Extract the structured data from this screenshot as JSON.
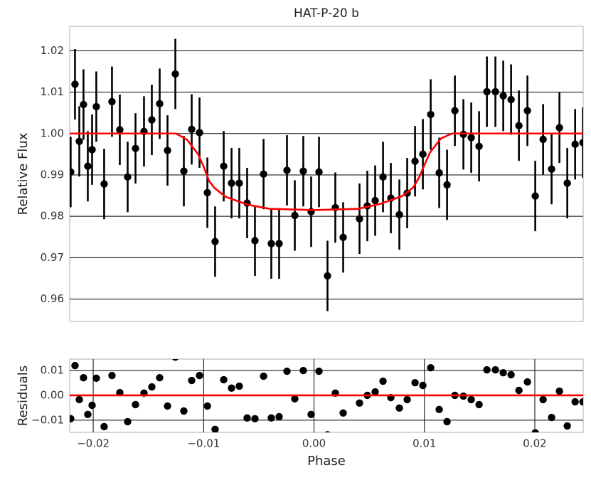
{
  "chart_data": [
    {
      "type": "errorbar",
      "title": "HAT-P-20 b",
      "ylabel": "Relative Flux",
      "x": [
        -0.02204,
        -0.02165,
        -0.02126,
        -0.02088,
        -0.02049,
        -0.0201,
        -0.01972,
        -0.01901,
        -0.0183,
        -0.01759,
        -0.01688,
        -0.01617,
        -0.0154,
        -0.01469,
        -0.01398,
        -0.01327,
        -0.01256,
        -0.01179,
        -0.01108,
        -0.01037,
        -0.00966,
        -0.00896,
        -0.00818,
        -0.00747,
        -0.00677,
        -0.00606,
        -0.00535,
        -0.00457,
        -0.00387,
        -0.00316,
        -0.00245,
        -0.00174,
        -0.00097,
        -0.00026,
        0.00045,
        0.00122,
        0.00193,
        0.00264,
        0.00412,
        0.00483,
        0.00554,
        0.00625,
        0.00696,
        0.00773,
        0.00844,
        0.00915,
        0.00986,
        0.01057,
        0.01134,
        0.01205,
        0.01276,
        0.01353,
        0.01424,
        0.01495,
        0.01566,
        0.01643,
        0.01714,
        0.01785,
        0.01856,
        0.01933,
        0.02004,
        0.02075,
        0.02152,
        0.02223,
        0.02294,
        0.02365,
        0.02436
      ],
      "values": [
        0.9907,
        1.0119,
        0.9981,
        1.007,
        0.9921,
        0.9961,
        1.0065,
        0.9878,
        1.0077,
        1.0009,
        0.9895,
        0.9964,
        1.0005,
        1.0033,
        1.0072,
        0.9959,
        1.0144,
        0.9909,
        1.001,
        1.0002,
        0.9857,
        0.9739,
        0.9921,
        0.988,
        0.988,
        0.9832,
        0.9741,
        0.9902,
        0.9734,
        0.9734,
        0.9911,
        0.9802,
        0.9909,
        0.9811,
        0.9907,
        0.9656,
        0.9821,
        0.9749,
        0.9794,
        0.9825,
        0.9838,
        0.9895,
        0.9844,
        0.9804,
        0.9856,
        0.9933,
        0.995,
        1.0046,
        0.9905,
        0.9876,
        1.0055,
        0.9998,
        0.999,
        0.9969,
        1.0101,
        1.0101,
        1.0091,
        1.0082,
        1.0019,
        1.0055,
        0.9849,
        0.9986,
        0.9914,
        1.0014,
        0.988,
        0.9974,
        0.9978
      ],
      "errors": [
        0.0085,
        0.0085,
        0.0085,
        0.0085,
        0.0085,
        0.0085,
        0.0085,
        0.0085,
        0.0085,
        0.0085,
        0.0085,
        0.0085,
        0.0085,
        0.0085,
        0.0085,
        0.0085,
        0.0085,
        0.0085,
        0.0085,
        0.0085,
        0.0085,
        0.0085,
        0.0085,
        0.0085,
        0.0085,
        0.0085,
        0.0085,
        0.0085,
        0.0085,
        0.0085,
        0.0085,
        0.0085,
        0.0085,
        0.0085,
        0.0085,
        0.0085,
        0.0085,
        0.0085,
        0.0085,
        0.0085,
        0.0085,
        0.0085,
        0.0085,
        0.0085,
        0.0085,
        0.0085,
        0.0085,
        0.0085,
        0.0085,
        0.0085,
        0.0085,
        0.0085,
        0.0085,
        0.0085,
        0.0085,
        0.0085,
        0.0085,
        0.0085,
        0.0085,
        0.0085,
        0.0085,
        0.0085,
        0.0085,
        0.0085,
        0.0085,
        0.0085,
        0.0085
      ],
      "color": "#000000",
      "model": {
        "x": [
          -0.0222,
          -0.0125,
          -0.0115,
          -0.0105,
          -0.01,
          -0.0095,
          -0.009,
          -0.008,
          -0.006,
          -0.004,
          0,
          0.004,
          0.006,
          0.008,
          0.009,
          0.0095,
          0.01,
          0.0105,
          0.0115,
          0.0125,
          0.0244
        ],
        "values": [
          1,
          1,
          0.9985,
          0.995,
          0.992,
          0.9885,
          0.9868,
          0.9847,
          0.9828,
          0.9818,
          0.9815,
          0.9818,
          0.983,
          0.9849,
          0.987,
          0.9893,
          0.9924,
          0.9954,
          0.9988,
          1,
          1
        ],
        "color": "#ff0000"
      },
      "xlim": [
        -0.02213,
        0.02438
      ],
      "ylim": [
        0.9546,
        1.0259
      ],
      "yticks": [
        0.96,
        0.97,
        0.98,
        0.99,
        {
          "value": 1,
          "label": "1.00"
        },
        1.01,
        1.02
      ],
      "grid": "y"
    },
    {
      "type": "scatter",
      "xlabel": "Phase",
      "ylabel": "Residuals",
      "x": [
        -0.02204,
        -0.02165,
        -0.02126,
        -0.02088,
        -0.02049,
        -0.0201,
        -0.01972,
        -0.01901,
        -0.0183,
        -0.01759,
        -0.01688,
        -0.01617,
        -0.0154,
        -0.01469,
        -0.01398,
        -0.01327,
        -0.01256,
        -0.01179,
        -0.01108,
        -0.01037,
        -0.00966,
        -0.00896,
        -0.00818,
        -0.00747,
        -0.00677,
        -0.00606,
        -0.00535,
        -0.00457,
        -0.00387,
        -0.00316,
        -0.00245,
        -0.00174,
        -0.00097,
        -0.00026,
        0.00045,
        0.00122,
        0.00193,
        0.00264,
        0.00412,
        0.00483,
        0.00554,
        0.00625,
        0.00696,
        0.00773,
        0.00844,
        0.00915,
        0.00986,
        0.01057,
        0.01134,
        0.01205,
        0.01276,
        0.01353,
        0.01424,
        0.01495,
        0.01566,
        0.01643,
        0.01714,
        0.01785,
        0.01856,
        0.01933,
        0.02004,
        0.02075,
        0.02152,
        0.02223,
        0.02294,
        0.02365,
        0.02436
      ],
      "values": [
        -0.0094,
        0.012,
        -0.0017,
        0.0071,
        -0.0077,
        -0.004,
        0.0069,
        -0.0126,
        0.008,
        0.0011,
        -0.0106,
        -0.0037,
        0.0009,
        0.0034,
        0.0071,
        -0.0043,
        0.0154,
        -0.0063,
        0.006,
        0.008,
        -0.0043,
        -0.0137,
        0.0063,
        0.0029,
        0.0037,
        -0.0091,
        -0.0094,
        0.0077,
        -0.0091,
        -0.0086,
        0.0097,
        -0.0014,
        0.01,
        -0.0077,
        0.0097,
        -0.0159,
        0.0009,
        -0.0071,
        -0.0031,
        0,
        0.0014,
        0.0057,
        -0.0009,
        -0.0051,
        -0.0017,
        0.0051,
        0.004,
        0.0111,
        -0.0057,
        -0.0106,
        0,
        -0.0003,
        -0.0017,
        -0.0037,
        0.0103,
        0.0103,
        0.0091,
        0.0083,
        0.002,
        0.0054,
        -0.0151,
        -0.0017,
        -0.0089,
        0.0017,
        -0.0123,
        -0.0026,
        -0.0026
      ],
      "color": "#000000",
      "model": {
        "x": [
          -0.0222,
          0.0244
        ],
        "values": [
          0,
          0
        ],
        "color": "#ff0000"
      },
      "xlim": [
        -0.02213,
        0.02438
      ],
      "ylim": [
        -0.0149,
        0.0146
      ],
      "xticks": [
        {
          "value": -0.02,
          "label": "−0.02"
        },
        {
          "value": -0.01,
          "label": "−0.01"
        },
        {
          "value": 0,
          "label": "0.00"
        },
        0.01,
        0.02
      ],
      "yticks": [
        {
          "value": -0.01,
          "label": "−0.01"
        },
        {
          "value": 0,
          "label": "0.00"
        },
        0.01
      ],
      "grid": "xy"
    }
  ]
}
